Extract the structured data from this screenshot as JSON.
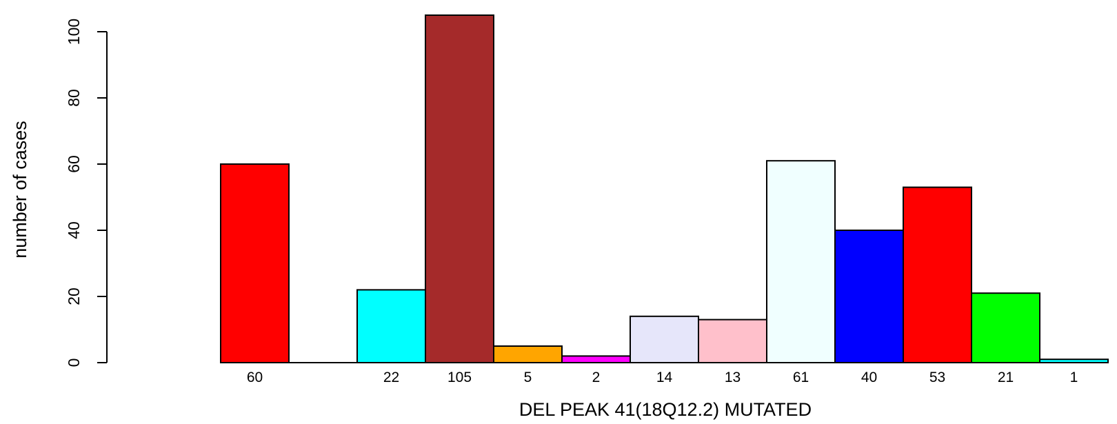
{
  "chart_data": {
    "type": "bar",
    "title": "",
    "xlabel": "DEL PEAK 41(18Q12.2) MUTATED",
    "ylabel": "number of cases",
    "ylim": [
      0,
      105
    ],
    "yticks": [
      0,
      20,
      40,
      60,
      80,
      100
    ],
    "grid": false,
    "legend": "none",
    "bars": [
      {
        "label": "60",
        "value": 60,
        "color": "#ff0000"
      },
      {
        "label": "",
        "value": 0,
        "color": "#ffffff"
      },
      {
        "label": "22",
        "value": 22,
        "color": "#00ffff"
      },
      {
        "label": "105",
        "value": 105,
        "color": "#a52a2a"
      },
      {
        "label": "5",
        "value": 5,
        "color": "#ffa500"
      },
      {
        "label": "2",
        "value": 2,
        "color": "#ff00ff"
      },
      {
        "label": "14",
        "value": 14,
        "color": "#e6e6fa"
      },
      {
        "label": "13",
        "value": 13,
        "color": "#ffc0cb"
      },
      {
        "label": "61",
        "value": 61,
        "color": "#f0ffff"
      },
      {
        "label": "40",
        "value": 40,
        "color": "#0000ff"
      },
      {
        "label": "53",
        "value": 53,
        "color": "#ff0000"
      },
      {
        "label": "21",
        "value": 21,
        "color": "#00ff00"
      },
      {
        "label": "1",
        "value": 1,
        "color": "#00ffff"
      }
    ]
  }
}
